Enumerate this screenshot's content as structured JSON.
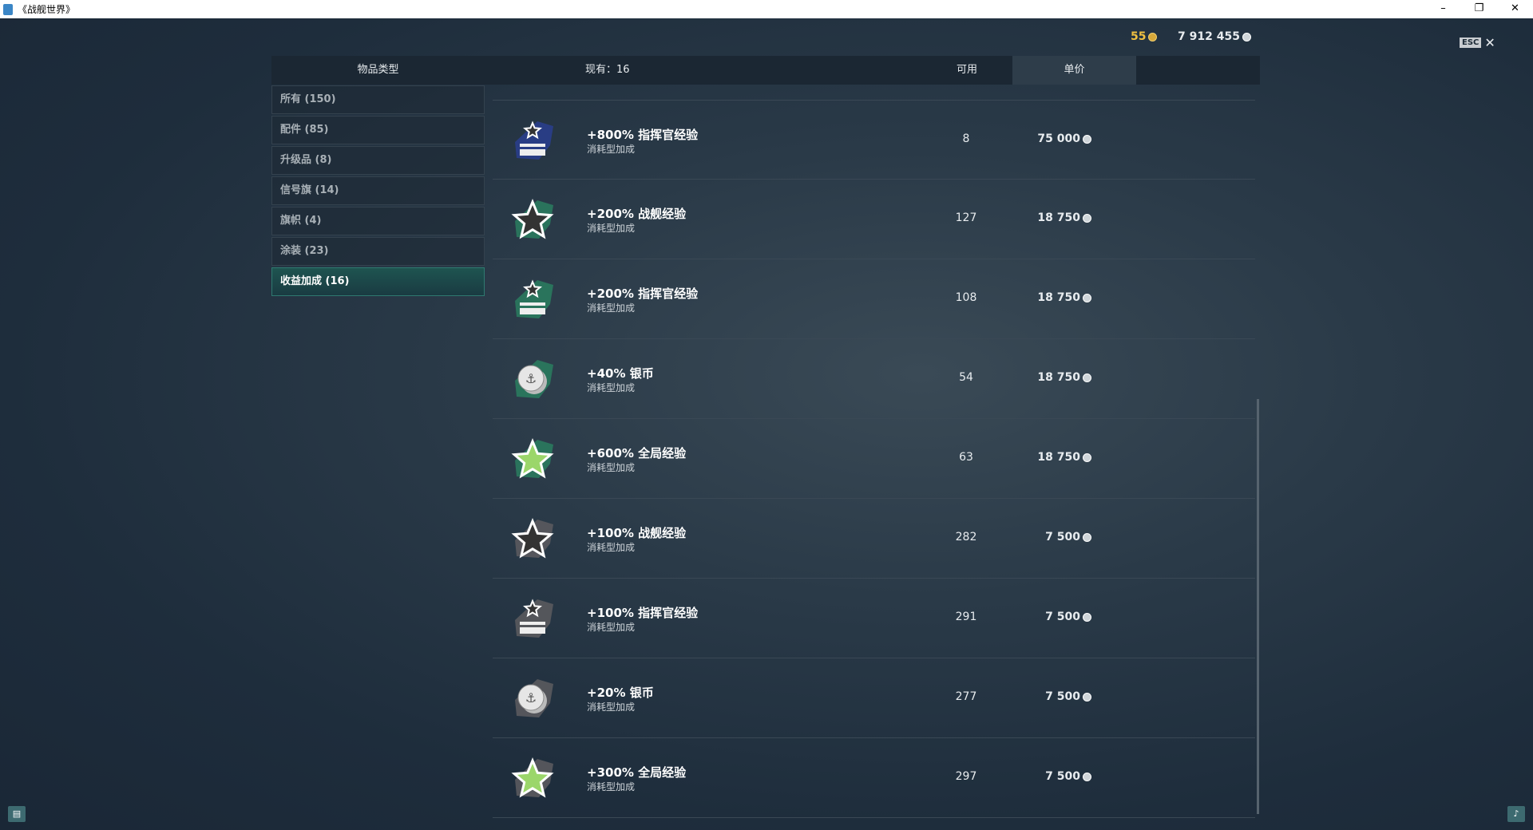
{
  "window": {
    "title": "《战舰世界》",
    "minimize": "–",
    "restore": "❐",
    "close": "✕"
  },
  "currency": {
    "gold": "55",
    "silver": "7 912 455",
    "gold_color": "#d7a83a"
  },
  "esc": {
    "key": "ESC",
    "close": "✕"
  },
  "header": {
    "type": "物品类型",
    "owned": "现有：16",
    "available": "可用",
    "price": "单价"
  },
  "sidebar": {
    "items": [
      {
        "label": "所有 (150)",
        "active": false
      },
      {
        "label": "配件 (85)",
        "active": false
      },
      {
        "label": "升级品 (8)",
        "active": false
      },
      {
        "label": "信号旗 (14)",
        "active": false
      },
      {
        "label": "旗帜 (4)",
        "active": false
      },
      {
        "label": "涂装 (23)",
        "active": false
      },
      {
        "label": "收益加成 (16)",
        "active": true
      }
    ]
  },
  "items": [
    {
      "name": "+800% 指挥官经验",
      "sub": "消耗型加成",
      "available": "8",
      "price": "75 000",
      "icon": "commander-xp-icon",
      "color": "#2a3e8c"
    },
    {
      "name": "+200% 战舰经验",
      "sub": "消耗型加成",
      "available": "127",
      "price": "18 750",
      "icon": "ship-xp-icon",
      "color": "#2a7a5e"
    },
    {
      "name": "+200% 指挥官经验",
      "sub": "消耗型加成",
      "available": "108",
      "price": "18 750",
      "icon": "commander-xp-icon",
      "color": "#2a7a5e"
    },
    {
      "name": "+40% 银币",
      "sub": "消耗型加成",
      "available": "54",
      "price": "18 750",
      "icon": "credits-icon",
      "color": "#2a7a5e"
    },
    {
      "name": "+600% 全局经验",
      "sub": "消耗型加成",
      "available": "63",
      "price": "18 750",
      "icon": "free-xp-icon",
      "color": "#2a7a5e"
    },
    {
      "name": "+100% 战舰经验",
      "sub": "消耗型加成",
      "available": "282",
      "price": "7 500",
      "icon": "ship-xp-icon",
      "color": "#5a5a5e"
    },
    {
      "name": "+100% 指挥官经验",
      "sub": "消耗型加成",
      "available": "291",
      "price": "7 500",
      "icon": "commander-xp-icon",
      "color": "#5a5a5e"
    },
    {
      "name": "+20% 银币",
      "sub": "消耗型加成",
      "available": "277",
      "price": "7 500",
      "icon": "credits-icon",
      "color": "#5a5a5e"
    },
    {
      "name": "+300% 全局经验",
      "sub": "消耗型加成",
      "available": "297",
      "price": "7 500",
      "icon": "free-xp-icon",
      "color": "#5a5a5e"
    }
  ]
}
